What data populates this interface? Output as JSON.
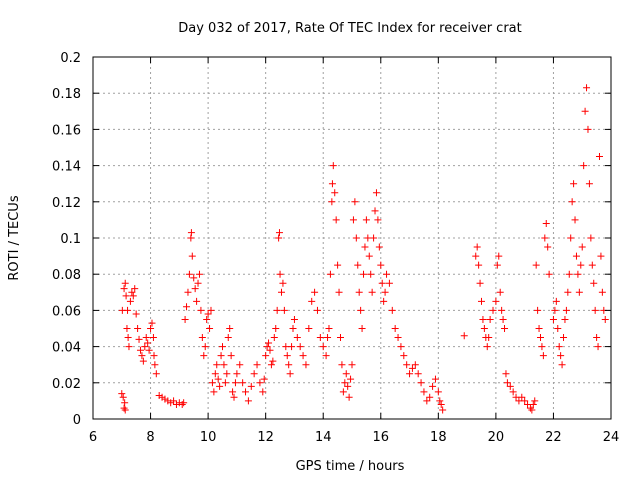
{
  "chart_data": {
    "type": "scatter",
    "title": "Day 032 of 2017, Rate Of TEC Index for receiver crat",
    "xlabel": "GPS time / hours",
    "ylabel": "ROTI / TECUs",
    "xlim": [
      6,
      24
    ],
    "ylim": [
      0,
      0.2
    ],
    "x_ticks": [
      "6",
      "8",
      "10",
      "12",
      "14",
      "16",
      "18",
      "20",
      "22",
      "24"
    ],
    "y_ticks": [
      "0",
      "0.02",
      "0.04",
      "0.06",
      "0.08",
      "0.1",
      "0.12",
      "0.14",
      "0.16",
      "0.18",
      "0.2"
    ],
    "grid": true,
    "marker": "plus",
    "color": "#ff0000",
    "series": [
      {
        "points": [
          [
            7.0,
            0.014
          ],
          [
            7.05,
            0.012
          ],
          [
            7.08,
            0.006
          ],
          [
            7.1,
            0.009
          ],
          [
            7.12,
            0.005
          ],
          [
            7.02,
            0.06
          ],
          [
            7.08,
            0.072
          ],
          [
            7.12,
            0.075
          ],
          [
            7.15,
            0.068
          ],
          [
            7.2,
            0.06
          ],
          [
            7.18,
            0.05
          ],
          [
            7.22,
            0.045
          ],
          [
            7.25,
            0.04
          ],
          [
            7.3,
            0.065
          ],
          [
            7.35,
            0.07
          ],
          [
            7.4,
            0.068
          ],
          [
            7.45,
            0.072
          ],
          [
            7.5,
            0.058
          ],
          [
            7.55,
            0.05
          ],
          [
            7.6,
            0.044
          ],
          [
            7.65,
            0.038
          ],
          [
            7.7,
            0.035
          ],
          [
            7.75,
            0.032
          ],
          [
            7.8,
            0.04
          ],
          [
            7.85,
            0.045
          ],
          [
            7.9,
            0.042
          ],
          [
            7.95,
            0.038
          ],
          [
            8.0,
            0.05
          ],
          [
            8.05,
            0.053
          ],
          [
            8.1,
            0.045
          ],
          [
            8.12,
            0.035
          ],
          [
            8.15,
            0.03
          ],
          [
            8.2,
            0.025
          ],
          [
            8.3,
            0.013
          ],
          [
            8.4,
            0.012
          ],
          [
            8.5,
            0.011
          ],
          [
            8.6,
            0.01
          ],
          [
            8.7,
            0.009
          ],
          [
            8.8,
            0.01
          ],
          [
            8.9,
            0.008
          ],
          [
            9.0,
            0.009
          ],
          [
            9.1,
            0.008
          ],
          [
            9.15,
            0.009
          ],
          [
            9.2,
            0.055
          ],
          [
            9.25,
            0.062
          ],
          [
            9.3,
            0.07
          ],
          [
            9.35,
            0.08
          ],
          [
            9.4,
            0.1
          ],
          [
            9.42,
            0.103
          ],
          [
            9.45,
            0.09
          ],
          [
            9.5,
            0.078
          ],
          [
            9.55,
            0.072
          ],
          [
            9.6,
            0.065
          ],
          [
            9.65,
            0.075
          ],
          [
            9.7,
            0.08
          ],
          [
            9.75,
            0.06
          ],
          [
            9.8,
            0.045
          ],
          [
            9.85,
            0.035
          ],
          [
            9.9,
            0.04
          ],
          [
            9.95,
            0.055
          ],
          [
            10.0,
            0.058
          ],
          [
            10.05,
            0.05
          ],
          [
            10.1,
            0.06
          ],
          [
            10.15,
            0.02
          ],
          [
            10.2,
            0.015
          ],
          [
            10.25,
            0.025
          ],
          [
            10.3,
            0.03
          ],
          [
            10.35,
            0.022
          ],
          [
            10.4,
            0.018
          ],
          [
            10.45,
            0.035
          ],
          [
            10.5,
            0.04
          ],
          [
            10.55,
            0.03
          ],
          [
            10.6,
            0.02
          ],
          [
            10.65,
            0.025
          ],
          [
            10.7,
            0.045
          ],
          [
            10.75,
            0.05
          ],
          [
            10.8,
            0.035
          ],
          [
            10.85,
            0.015
          ],
          [
            10.9,
            0.012
          ],
          [
            10.95,
            0.02
          ],
          [
            11.0,
            0.025
          ],
          [
            11.1,
            0.03
          ],
          [
            11.2,
            0.02
          ],
          [
            11.3,
            0.015
          ],
          [
            11.4,
            0.01
          ],
          [
            11.5,
            0.018
          ],
          [
            11.6,
            0.025
          ],
          [
            11.7,
            0.03
          ],
          [
            11.8,
            0.02
          ],
          [
            11.9,
            0.015
          ],
          [
            11.95,
            0.022
          ],
          [
            12.0,
            0.035
          ],
          [
            12.05,
            0.04
          ],
          [
            12.1,
            0.042
          ],
          [
            12.15,
            0.038
          ],
          [
            12.2,
            0.03
          ],
          [
            12.25,
            0.032
          ],
          [
            12.3,
            0.045
          ],
          [
            12.35,
            0.05
          ],
          [
            12.4,
            0.06
          ],
          [
            12.45,
            0.1
          ],
          [
            12.48,
            0.103
          ],
          [
            12.5,
            0.08
          ],
          [
            12.55,
            0.07
          ],
          [
            12.6,
            0.075
          ],
          [
            12.65,
            0.06
          ],
          [
            12.7,
            0.04
          ],
          [
            12.75,
            0.035
          ],
          [
            12.8,
            0.03
          ],
          [
            12.85,
            0.025
          ],
          [
            12.9,
            0.04
          ],
          [
            12.95,
            0.05
          ],
          [
            13.0,
            0.055
          ],
          [
            13.1,
            0.045
          ],
          [
            13.2,
            0.04
          ],
          [
            13.3,
            0.035
          ],
          [
            13.4,
            0.03
          ],
          [
            13.5,
            0.05
          ],
          [
            13.6,
            0.065
          ],
          [
            13.7,
            0.07
          ],
          [
            13.8,
            0.06
          ],
          [
            13.9,
            0.045
          ],
          [
            14.0,
            0.04
          ],
          [
            14.1,
            0.035
          ],
          [
            14.15,
            0.045
          ],
          [
            14.2,
            0.05
          ],
          [
            14.25,
            0.08
          ],
          [
            14.3,
            0.12
          ],
          [
            14.32,
            0.13
          ],
          [
            14.35,
            0.14
          ],
          [
            14.4,
            0.125
          ],
          [
            14.45,
            0.11
          ],
          [
            14.5,
            0.085
          ],
          [
            14.55,
            0.07
          ],
          [
            14.6,
            0.045
          ],
          [
            14.65,
            0.03
          ],
          [
            14.7,
            0.015
          ],
          [
            14.75,
            0.02
          ],
          [
            14.8,
            0.025
          ],
          [
            14.85,
            0.018
          ],
          [
            14.9,
            0.012
          ],
          [
            14.95,
            0.022
          ],
          [
            15.0,
            0.03
          ],
          [
            15.05,
            0.11
          ],
          [
            15.1,
            0.12
          ],
          [
            15.15,
            0.1
          ],
          [
            15.2,
            0.085
          ],
          [
            15.25,
            0.07
          ],
          [
            15.3,
            0.06
          ],
          [
            15.35,
            0.05
          ],
          [
            15.4,
            0.08
          ],
          [
            15.45,
            0.095
          ],
          [
            15.5,
            0.11
          ],
          [
            15.55,
            0.1
          ],
          [
            15.6,
            0.09
          ],
          [
            15.65,
            0.08
          ],
          [
            15.7,
            0.07
          ],
          [
            15.75,
            0.1
          ],
          [
            15.8,
            0.115
          ],
          [
            15.85,
            0.125
          ],
          [
            15.9,
            0.11
          ],
          [
            15.95,
            0.095
          ],
          [
            16.0,
            0.085
          ],
          [
            16.05,
            0.075
          ],
          [
            16.1,
            0.065
          ],
          [
            16.15,
            0.07
          ],
          [
            16.2,
            0.08
          ],
          [
            16.3,
            0.075
          ],
          [
            16.4,
            0.06
          ],
          [
            16.5,
            0.05
          ],
          [
            16.6,
            0.045
          ],
          [
            16.7,
            0.04
          ],
          [
            16.8,
            0.035
          ],
          [
            16.9,
            0.03
          ],
          [
            17.0,
            0.025
          ],
          [
            17.1,
            0.028
          ],
          [
            17.2,
            0.03
          ],
          [
            17.3,
            0.025
          ],
          [
            17.4,
            0.02
          ],
          [
            17.5,
            0.015
          ],
          [
            17.6,
            0.01
          ],
          [
            17.7,
            0.012
          ],
          [
            17.8,
            0.018
          ],
          [
            17.9,
            0.022
          ],
          [
            18.0,
            0.015
          ],
          [
            18.05,
            0.01
          ],
          [
            18.1,
            0.008
          ],
          [
            18.15,
            0.005
          ],
          [
            18.9,
            0.046
          ],
          [
            19.3,
            0.09
          ],
          [
            19.35,
            0.095
          ],
          [
            19.4,
            0.085
          ],
          [
            19.45,
            0.075
          ],
          [
            19.5,
            0.065
          ],
          [
            19.55,
            0.055
          ],
          [
            19.6,
            0.05
          ],
          [
            19.65,
            0.045
          ],
          [
            19.7,
            0.04
          ],
          [
            19.75,
            0.045
          ],
          [
            19.8,
            0.055
          ],
          [
            19.9,
            0.06
          ],
          [
            20.0,
            0.065
          ],
          [
            20.05,
            0.085
          ],
          [
            20.1,
            0.09
          ],
          [
            20.15,
            0.07
          ],
          [
            20.2,
            0.06
          ],
          [
            20.25,
            0.055
          ],
          [
            20.3,
            0.05
          ],
          [
            20.35,
            0.025
          ],
          [
            20.4,
            0.02
          ],
          [
            20.5,
            0.018
          ],
          [
            20.6,
            0.015
          ],
          [
            20.7,
            0.012
          ],
          [
            20.8,
            0.01
          ],
          [
            20.9,
            0.012
          ],
          [
            21.0,
            0.01
          ],
          [
            21.1,
            0.008
          ],
          [
            21.2,
            0.006
          ],
          [
            21.25,
            0.005
          ],
          [
            21.3,
            0.008
          ],
          [
            21.35,
            0.01
          ],
          [
            21.4,
            0.085
          ],
          [
            21.45,
            0.06
          ],
          [
            21.5,
            0.05
          ],
          [
            21.55,
            0.045
          ],
          [
            21.6,
            0.04
          ],
          [
            21.65,
            0.035
          ],
          [
            21.7,
            0.1
          ],
          [
            21.75,
            0.108
          ],
          [
            21.8,
            0.095
          ],
          [
            21.85,
            0.08
          ],
          [
            22.0,
            0.055
          ],
          [
            22.05,
            0.06
          ],
          [
            22.1,
            0.065
          ],
          [
            22.15,
            0.05
          ],
          [
            22.2,
            0.04
          ],
          [
            22.25,
            0.035
          ],
          [
            22.3,
            0.03
          ],
          [
            22.35,
            0.045
          ],
          [
            22.4,
            0.055
          ],
          [
            22.45,
            0.06
          ],
          [
            22.5,
            0.07
          ],
          [
            22.55,
            0.08
          ],
          [
            22.6,
            0.1
          ],
          [
            22.65,
            0.12
          ],
          [
            22.7,
            0.13
          ],
          [
            22.75,
            0.11
          ],
          [
            22.8,
            0.09
          ],
          [
            22.85,
            0.08
          ],
          [
            22.9,
            0.07
          ],
          [
            22.95,
            0.085
          ],
          [
            23.0,
            0.095
          ],
          [
            23.05,
            0.14
          ],
          [
            23.1,
            0.17
          ],
          [
            23.15,
            0.183
          ],
          [
            23.2,
            0.16
          ],
          [
            23.25,
            0.13
          ],
          [
            23.3,
            0.1
          ],
          [
            23.35,
            0.085
          ],
          [
            23.4,
            0.075
          ],
          [
            23.45,
            0.06
          ],
          [
            23.5,
            0.045
          ],
          [
            23.55,
            0.04
          ],
          [
            23.6,
            0.145
          ],
          [
            23.65,
            0.09
          ],
          [
            23.7,
            0.07
          ],
          [
            23.75,
            0.06
          ],
          [
            23.8,
            0.055
          ]
        ]
      }
    ]
  }
}
